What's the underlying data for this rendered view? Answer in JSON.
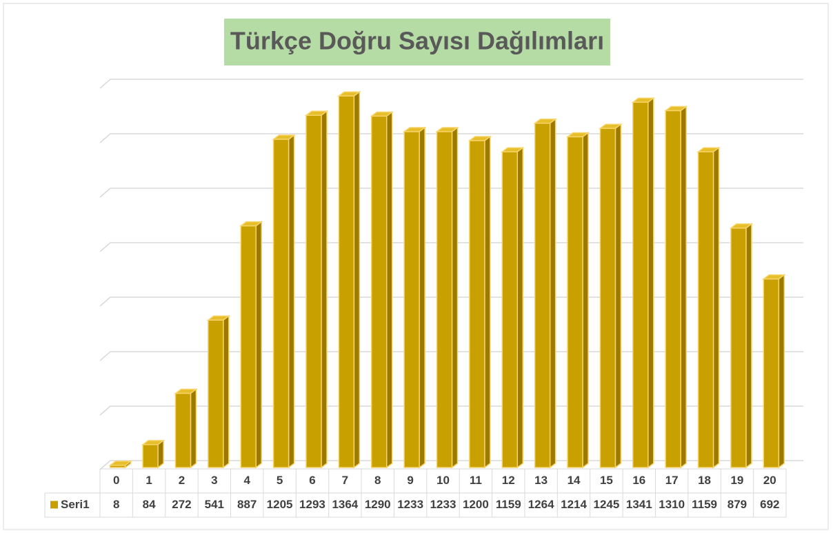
{
  "chart_data": {
    "type": "bar3d",
    "title": "Türkçe Doğru Sayısı Dağılımları",
    "categories": [
      "0",
      "1",
      "2",
      "3",
      "4",
      "5",
      "6",
      "7",
      "8",
      "9",
      "10",
      "11",
      "12",
      "13",
      "14",
      "15",
      "16",
      "17",
      "18",
      "19",
      "20"
    ],
    "series": [
      {
        "name": "Seri1",
        "color": "#c8a000",
        "values": [
          8,
          84,
          272,
          541,
          887,
          1205,
          1293,
          1364,
          1290,
          1233,
          1233,
          1200,
          1159,
          1264,
          1214,
          1245,
          1341,
          1310,
          1159,
          879,
          692
        ]
      }
    ],
    "ylim": [
      0,
      1400
    ],
    "yticks": [
      0,
      200,
      400,
      600,
      800,
      1000,
      1200,
      1400
    ],
    "grid": true,
    "data_table": true
  }
}
